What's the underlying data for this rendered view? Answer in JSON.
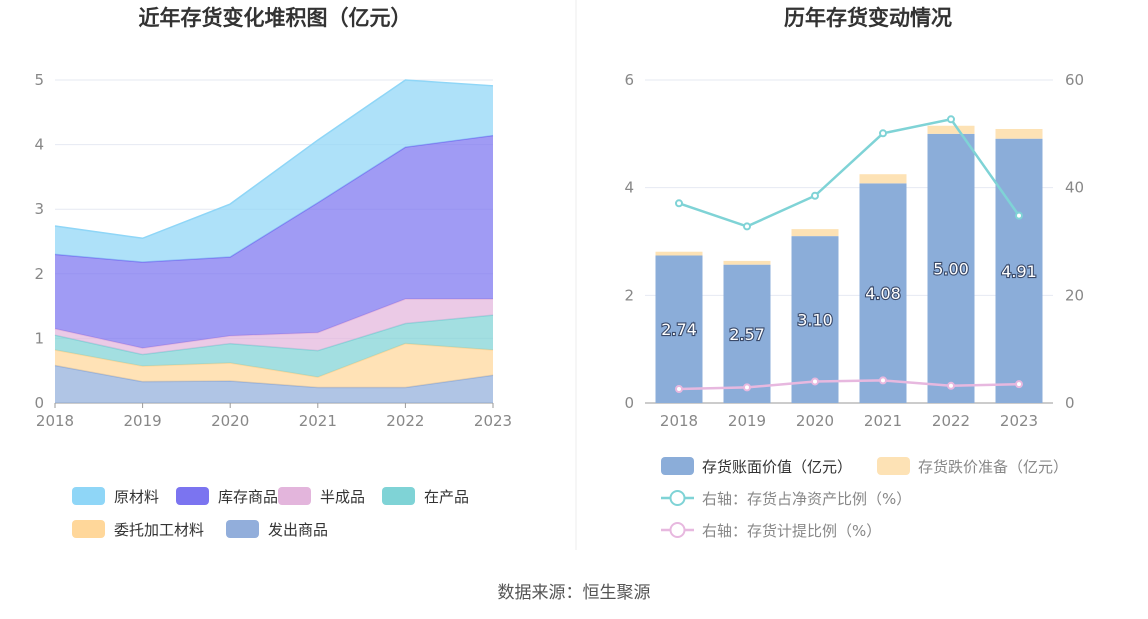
{
  "source": "数据来源：恒生聚源",
  "colors": {
    "raw_materials": "#8fd6f7",
    "finished_goods": "#7b74f0",
    "semi_finished": "#e3b5dc",
    "wip": "#7fd3d6",
    "consigned": "#ffd79a",
    "shipped": "#92aedb",
    "bar_book_value": "#8badd9",
    "bar_provision": "#fde2b5",
    "line_net_asset_ratio": "#7fd3d6",
    "line_provision_ratio": "#e7b8df"
  },
  "chart_data": [
    {
      "type": "area",
      "stacked": true,
      "title": "近年存货变化堆积图（亿元）",
      "x": [
        "2018",
        "2019",
        "2020",
        "2021",
        "2022",
        "2023"
      ],
      "ylim": [
        0,
        5
      ],
      "yticks": [
        "0",
        "1",
        "2",
        "3",
        "4",
        "5"
      ],
      "grid": true,
      "legend_position": "bottom",
      "series": [
        {
          "name": "发出商品",
          "color_key": "shipped",
          "values": [
            0.58,
            0.33,
            0.34,
            0.24,
            0.24,
            0.43
          ]
        },
        {
          "name": "委托加工材料",
          "color_key": "consigned",
          "values": [
            0.24,
            0.24,
            0.28,
            0.16,
            0.68,
            0.39
          ]
        },
        {
          "name": "在产品",
          "color_key": "wip",
          "values": [
            0.23,
            0.18,
            0.3,
            0.41,
            0.31,
            0.54
          ]
        },
        {
          "name": "半成品",
          "color_key": "semi_finished",
          "values": [
            0.1,
            0.1,
            0.12,
            0.28,
            0.38,
            0.25
          ]
        },
        {
          "name": "库存商品",
          "color_key": "finished_goods",
          "values": [
            1.15,
            1.33,
            1.22,
            2.01,
            2.35,
            2.53
          ]
        },
        {
          "name": "原材料",
          "color_key": "raw_materials",
          "values": [
            0.44,
            0.37,
            0.82,
            0.97,
            1.04,
            0.77
          ]
        }
      ],
      "legend_order": [
        "原材料",
        "库存商品",
        "半成品",
        "在产品",
        "委托加工材料",
        "发出商品"
      ]
    },
    {
      "type": "bar",
      "stacked": true,
      "title": "历年存货变动情况",
      "categories": [
        "2018",
        "2019",
        "2020",
        "2021",
        "2022",
        "2023"
      ],
      "ylim": [
        0,
        6
      ],
      "yticks": [
        "0",
        "2",
        "4",
        "6"
      ],
      "y2lim": [
        0,
        60
      ],
      "y2ticks": [
        "0",
        "20",
        "40",
        "60"
      ],
      "grid": true,
      "legend_position": "bottom",
      "bars": [
        {
          "name": "存货账面价值（亿元）",
          "color_key": "bar_book_value",
          "values": [
            2.74,
            2.57,
            3.1,
            4.08,
            5.0,
            4.91
          ],
          "labels": [
            "2.74",
            "2.57",
            "3.10",
            "4.08",
            "5.00",
            "4.91"
          ]
        },
        {
          "name": "存货跌价准备（亿元）",
          "color_key": "bar_provision",
          "values": [
            0.07,
            0.07,
            0.13,
            0.17,
            0.15,
            0.18
          ]
        }
      ],
      "lines": [
        {
          "name": "右轴：存货占净资产比例（%）",
          "color_key": "line_net_asset_ratio",
          "axis": "right",
          "values": [
            37.1,
            32.8,
            38.5,
            50.1,
            52.7,
            34.8
          ]
        },
        {
          "name": "右轴：存货计提比例（%）",
          "color_key": "line_provision_ratio",
          "axis": "right",
          "values": [
            2.6,
            2.9,
            4.0,
            4.2,
            3.2,
            3.5
          ]
        }
      ]
    }
  ]
}
